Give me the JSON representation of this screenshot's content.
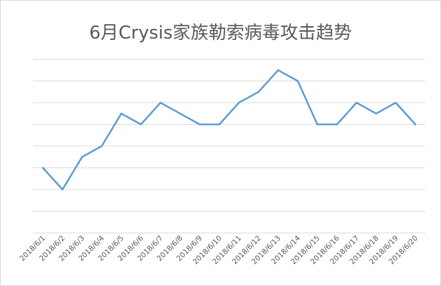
{
  "chart_data": {
    "type": "line",
    "title": "6月Crysis家族勒索病毒攻击趋势",
    "xlabel": "",
    "ylabel": "",
    "categories": [
      "2018/6/1",
      "2018/6/2",
      "2018/6/3",
      "2018/6/4",
      "2018/6/5",
      "2018/6/6",
      "2018/6/7",
      "2018/6/8",
      "2018/6/9",
      "2018/6/10",
      "2018/6/11",
      "2018/6/12",
      "2018/6/13",
      "2018/6/14",
      "2018/6/15",
      "2018/6/16",
      "2018/6/17",
      "2018/6/18",
      "2018/6/19",
      "2018/6/20"
    ],
    "series": [
      {
        "values": [
          3.0,
          2.0,
          3.5,
          4.0,
          5.5,
          5.0,
          6.0,
          5.5,
          5.0,
          5.0,
          6.0,
          6.5,
          7.5,
          7.0,
          5.0,
          5.0,
          6.0,
          5.5,
          6.0,
          5.0
        ],
        "color": "#5b9bd5"
      }
    ],
    "ylim": [
      0,
      8
    ],
    "y_tick_labels_visible": false,
    "grid": "horizontal",
    "legend": "none",
    "colors": {
      "line": "#5b9bd5",
      "grid": "#d9d9d9",
      "text": "#595959"
    }
  }
}
